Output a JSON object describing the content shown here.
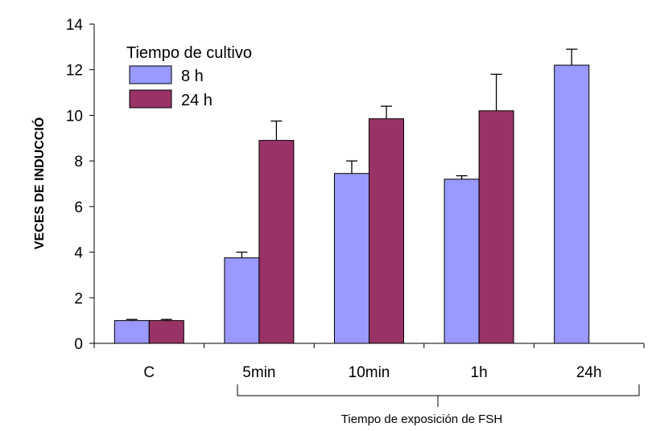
{
  "chart_data": {
    "type": "bar",
    "categories": [
      "C",
      "5min",
      "10min",
      "1h",
      "24h"
    ],
    "series": [
      {
        "name": "8 h",
        "color": "#9999FF",
        "values": [
          1.0,
          3.75,
          7.45,
          7.2,
          12.2
        ],
        "errors": [
          0.05,
          0.25,
          0.55,
          0.15,
          0.7
        ]
      },
      {
        "name": "24 h",
        "color": "#993366",
        "values": [
          1.0,
          8.9,
          9.85,
          10.2,
          null
        ],
        "errors": [
          0.05,
          0.85,
          0.55,
          1.6,
          null
        ]
      }
    ],
    "legend_title": "Tiempo de cultivo",
    "legend_position": "top-left",
    "ylabel": "VECES DE INDUCCIÓ",
    "ylim": [
      0,
      14
    ],
    "yticks": [
      0,
      2,
      4,
      6,
      8,
      10,
      12,
      14
    ],
    "bracket_label": "Tiempo de exposición de FSH",
    "grid": false
  }
}
